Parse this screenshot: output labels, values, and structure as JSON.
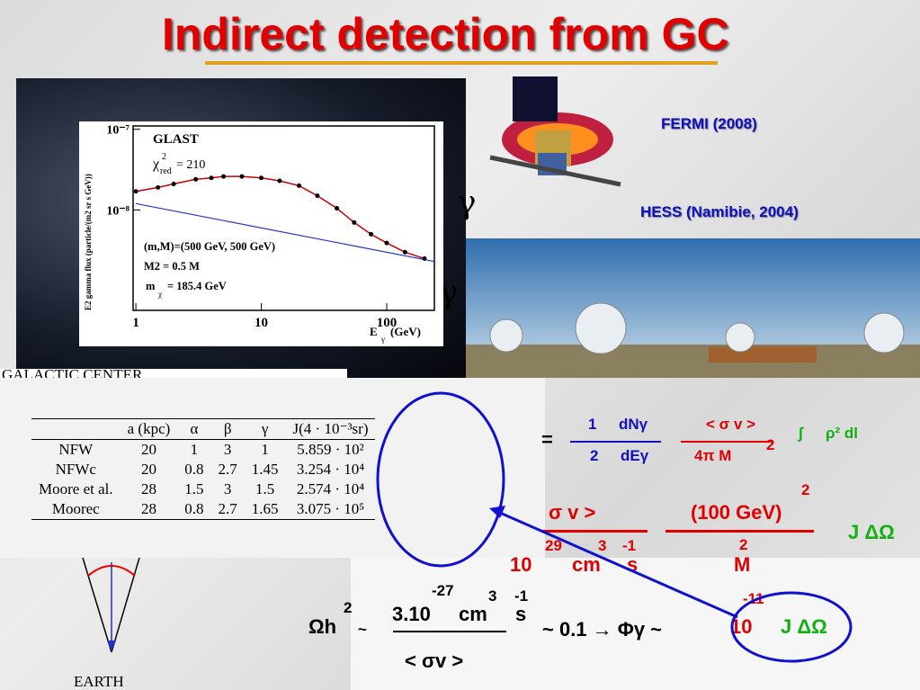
{
  "title": "Indirect detection from GC",
  "labels": {
    "fermi": "FERMI (2008)",
    "hess": "HESS (Namibie, 2004)",
    "galactic_center": "GALACTIC CENTER",
    "earth": "EARTH",
    "glyph_1": "γ",
    "glyph_2": "γ"
  },
  "glast_plot": {
    "title": "GLAST",
    "chi": "χ",
    "chi_sup": "2",
    "chi_sub": "red",
    "chi_value": "= 210",
    "params": "(m,M)=(500 GeV, 500 GeV)",
    "m2": "M2 = 0.5 M",
    "mass_m": "m",
    "mass_sub": "χ",
    "mass_value": "= 185.4 GeV",
    "ylabel": "E2 gamma flux (particle/(m2 sr s GeV))",
    "xlabel_e": "E",
    "xlabel_sub": "γ",
    "xlabel_unit": "(GeV)",
    "log_x": true,
    "log_y": true,
    "xlim": [
      0.95,
      240
    ],
    "ylim": [
      5.7e-10,
      1.1e-07
    ],
    "xticks": [
      1,
      10,
      100
    ],
    "yticks": [
      {
        "value": 1e-07,
        "label": "10⁻⁷"
      },
      {
        "value": 1e-08,
        "label": "10⁻⁸"
      }
    ],
    "x": [
      1,
      1.5,
      2,
      3,
      4,
      5,
      7,
      10,
      14,
      20,
      28,
      40,
      55,
      75,
      100,
      140,
      200
    ],
    "y": [
      1.7e-08,
      1.9e-08,
      2.1e-08,
      2.4e-08,
      2.5e-08,
      2.6e-08,
      2.6e-08,
      2.5e-08,
      2.3e-08,
      2e-08,
      1.5e-08,
      1.05e-08,
      7e-09,
      5e-09,
      3.9e-09,
      3e-09,
      2.5e-09
    ],
    "point_color": "#000000",
    "fit_color": "#cc0000",
    "background": {
      "x": [
        1,
        240
      ],
      "y": [
        1.2e-08,
        2.3e-09
      ],
      "color": "#2233cc"
    }
  },
  "table": {
    "header": [
      "a (kpc)",
      "α",
      "β",
      "γ",
      "J(4 · 10⁻³sr)"
    ],
    "rows": [
      [
        "NFW",
        "20",
        "1",
        "3",
        "1",
        "5.859 · 10²"
      ],
      [
        "NFWc",
        "20",
        "0.8",
        "2.7",
        "1.45",
        "3.254 · 10⁴"
      ],
      [
        "Moore et al.",
        "28",
        "1.5",
        "3",
        "1.5",
        "2.574 · 10⁴"
      ],
      [
        "Moorec",
        "28",
        "0.8",
        "2.7",
        "1.65",
        "3.075 · 10⁵"
      ]
    ]
  },
  "formulas": {
    "eq": "=",
    "r1_num1": "1",
    "r1_num2": "dNγ",
    "r1_den1": "2",
    "r1_den2": "dEγ",
    "r1_num3": "< σ v >",
    "r1_den3": "4π M",
    "r1_pow": "2",
    "r1_int": "∫",
    "r1_rho": "ρ² dl",
    "r2_num1": "σ v >",
    "r2_num2": "(100 GeV)",
    "r2_num2_pow": "2",
    "r2_den_10": "10",
    "r2_den_29": "29",
    "r2_den_cm": "cm",
    "r2_den_3": "3",
    "r2_den_s": "s",
    "r2_den_m1": "-1",
    "r2_den_M": "M",
    "r2_den_M_pow": "2",
    "r2_j": "J ΔΩ",
    "r3_omega": "Ωh",
    "r3_omega_pow": "2",
    "r3_tilde": "~",
    "r3_num": "3.10",
    "r3_num_pow": "-27",
    "r3_cm": "cm",
    "r3_cm_pow": "3",
    "r3_s": "s",
    "r3_s_pow": "-1",
    "r3_den": "< σv >",
    "r3_mid": "~  0.1  → Φγ ~",
    "r3_ten": "10",
    "r3_ten_pow": "-11",
    "r3_j": "J ΔΩ"
  }
}
